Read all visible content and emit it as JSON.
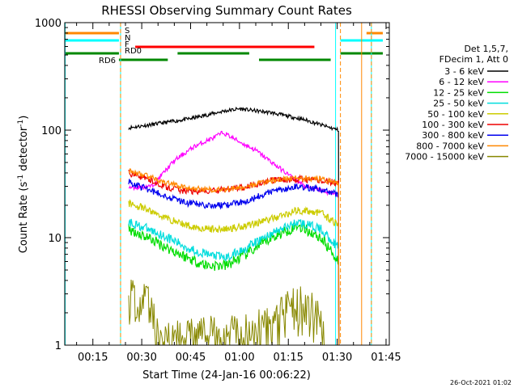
{
  "chart_data": {
    "type": "line",
    "title": "RHESSI Observing Summary Count Rates",
    "xlabel": "Start Time (24-Jan-16 00:06:22)",
    "ylabel": "Count Rate (s",
    "ylabel_sup": "-1",
    "ylabel_tail": " detector",
    "ylabel_end": ")",
    "footer": "26-Oct-2021 01:02",
    "y_scale": "log",
    "ylim": [
      1,
      1000
    ],
    "xlim": [
      "00:06:22",
      "01:46:00"
    ],
    "x_ticks": [
      "00:15",
      "00:30",
      "00:45",
      "01:00",
      "01:15",
      "01:30",
      "01:45"
    ],
    "x_tick_minutes": [
      15,
      30,
      45,
      60,
      75,
      90,
      105
    ],
    "y_ticks": [
      "1",
      "10",
      "100",
      "1000"
    ],
    "y_tick_values": [
      1,
      10,
      100,
      1000
    ],
    "legend_header": [
      "Det 1,5,7,",
      "FDecim 1, Att 0"
    ],
    "legend_position": "right",
    "series": [
      {
        "name": "3 - 6 keV",
        "color": "#000000",
        "x": [
          26,
          35,
          45,
          55,
          60,
          70,
          80,
          88,
          90.5
        ],
        "y": [
          105,
          115,
          128,
          150,
          158,
          145,
          125,
          105,
          100
        ]
      },
      {
        "name": "6 - 12 keV",
        "color": "#ff00ff",
        "x": [
          26,
          33,
          40,
          46,
          52,
          55,
          60,
          65,
          72,
          80,
          88,
          90.5
        ],
        "y": [
          29,
          30,
          52,
          70,
          85,
          95,
          78,
          65,
          45,
          30,
          26,
          25
        ]
      },
      {
        "name": "12 - 25 keV",
        "color": "#00dd00",
        "x": [
          26,
          32,
          38,
          44,
          50,
          56,
          62,
          70,
          78,
          85,
          90.5
        ],
        "y": [
          12,
          10,
          8,
          6.5,
          5.5,
          5.5,
          7,
          10,
          13,
          10,
          6
        ]
      },
      {
        "name": "25 - 50 keV",
        "color": "#00dddd",
        "x": [
          26,
          32,
          38,
          44,
          50,
          56,
          62,
          70,
          78,
          85,
          90.5
        ],
        "y": [
          14,
          12,
          10,
          8,
          7,
          6.5,
          8,
          11,
          14,
          12,
          8
        ]
      },
      {
        "name": "50 - 100 keV",
        "color": "#cccc00",
        "x": [
          26,
          32,
          38,
          44,
          50,
          56,
          62,
          70,
          78,
          85,
          90.5
        ],
        "y": [
          21,
          18,
          15,
          13,
          12,
          12,
          13,
          15,
          18,
          17,
          13
        ]
      },
      {
        "name": "100 - 300 keV",
        "color": "#ee0000",
        "x": [
          26,
          32,
          38,
          44,
          50,
          56,
          62,
          70,
          78,
          85,
          90.5
        ],
        "y": [
          40,
          35,
          29,
          27,
          27,
          28,
          30,
          34,
          35,
          34,
          32
        ]
      },
      {
        "name": "300 - 800 keV",
        "color": "#0000ee",
        "x": [
          26,
          32,
          38,
          44,
          50,
          56,
          62,
          70,
          78,
          85,
          90.5
        ],
        "y": [
          33,
          28,
          24,
          21,
          20,
          20,
          22,
          27,
          30,
          28,
          25
        ]
      },
      {
        "name": "800 - 7000 keV",
        "color": "#ff8800",
        "x": [
          26,
          32,
          38,
          44,
          50,
          56,
          62,
          70,
          78,
          85,
          90.5
        ],
        "y": [
          42,
          37,
          32,
          29,
          28,
          28,
          30,
          34,
          36,
          35,
          32
        ]
      },
      {
        "name": "7000 - 15000 keV",
        "color": "#888800",
        "x": [
          26,
          29,
          32,
          34,
          36,
          70,
          74,
          78,
          81,
          84,
          86
        ],
        "y": [
          2.8,
          2.6,
          2.4,
          1.6,
          1.1,
          1.5,
          2.1,
          2.4,
          2.3,
          1.8,
          1.2
        ]
      }
    ],
    "flags": [
      {
        "label": "S",
        "color": "#ff8800",
        "segments": [
          [
            6.4,
            23
          ],
          [
            99,
            104
          ]
        ]
      },
      {
        "label": "N",
        "color": "#00ffff",
        "segments": [
          [
            6.4,
            23
          ],
          [
            91,
            104
          ]
        ]
      },
      {
        "label": "F",
        "color": "#ff0000",
        "segments": [
          [
            28,
            83
          ]
        ]
      },
      {
        "label": "RD0",
        "color": "#008800",
        "segments": [
          [
            6.4,
            23
          ],
          [
            41,
            63
          ],
          [
            91,
            104
          ]
        ]
      },
      {
        "label": "RD6",
        "color": "#008800",
        "segments": [
          [
            23,
            38
          ],
          [
            66,
            88
          ]
        ]
      }
    ],
    "vertical_lines": [
      {
        "x": 6.5,
        "color": "#00ffff",
        "style": "solid"
      },
      {
        "x": 23.5,
        "color": "#00ffff",
        "style": "solid"
      },
      {
        "x": 23.5,
        "color": "#ff8800",
        "style": "dashed"
      },
      {
        "x": 89.5,
        "color": "#00ffff",
        "style": "solid"
      },
      {
        "x": 91,
        "color": "#ff8800",
        "style": "dashed"
      },
      {
        "x": 97.5,
        "color": "#ff8800",
        "style": "solid"
      },
      {
        "x": 100.5,
        "color": "#00ffff",
        "style": "solid"
      },
      {
        "x": 100.5,
        "color": "#ff8800",
        "style": "dashed"
      }
    ]
  }
}
